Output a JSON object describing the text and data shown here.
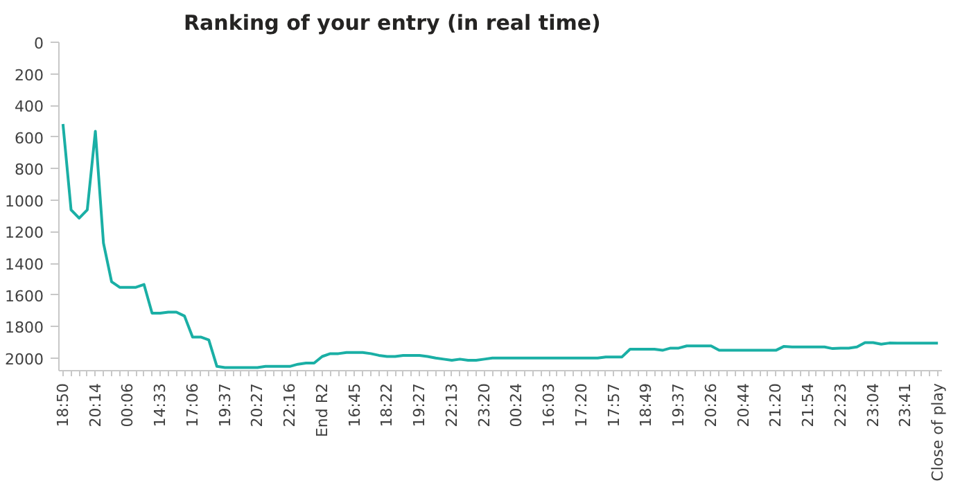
{
  "chart_data": {
    "type": "line",
    "title": "Ranking of your entry (in real time)",
    "categories": [
      "18:50",
      null,
      null,
      null,
      "20:14",
      null,
      null,
      null,
      "00:06",
      null,
      null,
      null,
      "14:33",
      null,
      null,
      null,
      "17:06",
      null,
      null,
      null,
      "19:37",
      null,
      null,
      null,
      "20:27",
      null,
      null,
      null,
      "22:16",
      null,
      null,
      null,
      "End R2",
      null,
      null,
      null,
      "16:45",
      null,
      null,
      null,
      "18:22",
      null,
      null,
      null,
      "19:27",
      null,
      null,
      null,
      "22:13",
      null,
      null,
      null,
      "23:20",
      null,
      null,
      null,
      "00:24",
      null,
      null,
      null,
      "16:03",
      null,
      null,
      null,
      "17:20",
      null,
      null,
      null,
      "17:57",
      null,
      null,
      null,
      "18:49",
      null,
      null,
      null,
      "19:37",
      null,
      null,
      null,
      "20:26",
      null,
      null,
      null,
      "20:44",
      null,
      null,
      null,
      "21:20",
      null,
      null,
      null,
      "21:54",
      null,
      null,
      null,
      "22:23",
      null,
      null,
      null,
      "23:04",
      null,
      null,
      null,
      "23:41",
      null,
      null,
      null,
      "Close of play"
    ],
    "series": [
      {
        "color": "#1aafa5",
        "values": [
          518,
          1061,
          1114,
          1061,
          564,
          1272,
          1517,
          1552,
          1552,
          1552,
          1534,
          1716,
          1716,
          1709,
          1709,
          1734,
          1867,
          1867,
          1885,
          2053,
          2060,
          2060,
          2060,
          2060,
          2060,
          2053,
          2053,
          2053,
          2053,
          2039,
          2032,
          2032,
          1990,
          1972,
          1972,
          1965,
          1965,
          1965,
          1972,
          1983,
          1990,
          1990,
          1983,
          1983,
          1983,
          1990,
          2000,
          2007,
          2014,
          2007,
          2014,
          2014,
          2007,
          2000,
          2000,
          2000,
          2000,
          2000,
          2000,
          2000,
          2000,
          2000,
          2000,
          2000,
          2000,
          2000,
          2000,
          1993,
          1993,
          1993,
          1944,
          1944,
          1944,
          1944,
          1951,
          1937,
          1937,
          1923,
          1923,
          1923,
          1923,
          1951,
          1951,
          1951,
          1951,
          1951,
          1951,
          1951,
          1951,
          1926,
          1930,
          1930,
          1930,
          1930,
          1930,
          1940,
          1937,
          1937,
          1930,
          1902,
          1902,
          1912,
          1905,
          1906,
          1906,
          1906,
          1906,
          1906,
          1906
        ]
      }
    ],
    "ylim": [
      2080,
      0
    ],
    "yticks": [
      0,
      200,
      400,
      600,
      800,
      1000,
      1200,
      1400,
      1600,
      1800,
      2000
    ],
    "grid": false,
    "marker": "none",
    "line_style": "solid"
  }
}
